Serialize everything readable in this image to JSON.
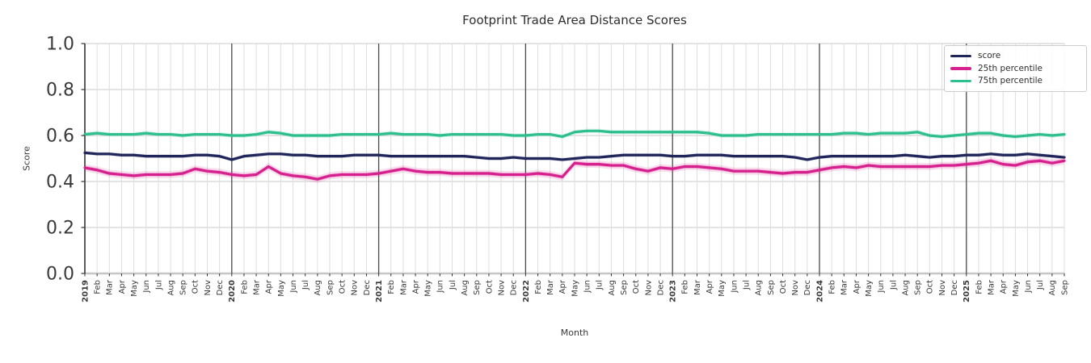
{
  "chart_data": {
    "type": "line",
    "title": "Footprint Trade Area Distance Scores",
    "xlabel": "Month",
    "ylabel": "Score",
    "ylim": [
      0.0,
      1.0
    ],
    "y_ticks": [
      0.0,
      0.2,
      0.4,
      0.6,
      0.8,
      1.0
    ],
    "grid": "on",
    "legend_position": "upper right",
    "x": [
      "2019",
      "Feb",
      "Mar",
      "Apr",
      "May",
      "Jun",
      "Jul",
      "Aug",
      "Sep",
      "Oct",
      "Nov",
      "Dec",
      "2020",
      "Feb",
      "Mar",
      "Apr",
      "May",
      "Jun",
      "Jul",
      "Aug",
      "Sep",
      "Oct",
      "Nov",
      "Dec",
      "2021",
      "Feb",
      "Mar",
      "Apr",
      "May",
      "Jun",
      "Jul",
      "Aug",
      "Sep",
      "Oct",
      "Nov",
      "Dec",
      "2022",
      "Feb",
      "Mar",
      "Apr",
      "May",
      "Jun",
      "Jul",
      "Aug",
      "Sep",
      "Oct",
      "Nov",
      "Dec",
      "2023",
      "Feb",
      "Mar",
      "Apr",
      "May",
      "Jun",
      "Jul",
      "Aug",
      "Sep",
      "Oct",
      "Nov",
      "Dec",
      "2024",
      "Feb",
      "Mar",
      "Apr",
      "May",
      "Jun",
      "Jul",
      "Aug",
      "Sep",
      "Oct",
      "Nov",
      "Dec",
      "2025",
      "Feb",
      "Mar",
      "Apr",
      "May",
      "Jun",
      "Jul",
      "Aug",
      "Sep"
    ],
    "series": [
      {
        "name": "score",
        "color": "#20265a",
        "band_halfwidth": 0.008,
        "values": [
          0.525,
          0.52,
          0.52,
          0.515,
          0.515,
          0.51,
          0.51,
          0.51,
          0.51,
          0.515,
          0.515,
          0.51,
          0.495,
          0.51,
          0.515,
          0.52,
          0.52,
          0.515,
          0.515,
          0.51,
          0.51,
          0.51,
          0.515,
          0.515,
          0.515,
          0.51,
          0.51,
          0.51,
          0.51,
          0.51,
          0.51,
          0.51,
          0.505,
          0.5,
          0.5,
          0.505,
          0.5,
          0.5,
          0.5,
          0.495,
          0.5,
          0.505,
          0.505,
          0.51,
          0.515,
          0.515,
          0.515,
          0.515,
          0.51,
          0.51,
          0.515,
          0.515,
          0.515,
          0.51,
          0.51,
          0.51,
          0.51,
          0.51,
          0.505,
          0.495,
          0.505,
          0.51,
          0.51,
          0.51,
          0.51,
          0.51,
          0.51,
          0.515,
          0.51,
          0.505,
          0.51,
          0.51,
          0.515,
          0.515,
          0.52,
          0.515,
          0.515,
          0.52,
          0.515,
          0.51,
          0.505
        ]
      },
      {
        "name": "25th percentile",
        "color": "#d6208e",
        "band_halfwidth": 0.016,
        "values": [
          0.46,
          0.45,
          0.435,
          0.43,
          0.425,
          0.43,
          0.43,
          0.43,
          0.435,
          0.455,
          0.445,
          0.44,
          0.43,
          0.425,
          0.43,
          0.465,
          0.435,
          0.425,
          0.42,
          0.41,
          0.425,
          0.43,
          0.43,
          0.43,
          0.435,
          0.445,
          0.455,
          0.445,
          0.44,
          0.44,
          0.435,
          0.435,
          0.435,
          0.435,
          0.43,
          0.43,
          0.43,
          0.435,
          0.43,
          0.42,
          0.48,
          0.475,
          0.475,
          0.47,
          0.47,
          0.455,
          0.445,
          0.46,
          0.455,
          0.465,
          0.465,
          0.46,
          0.455,
          0.445,
          0.445,
          0.445,
          0.44,
          0.435,
          0.44,
          0.44,
          0.45,
          0.46,
          0.465,
          0.46,
          0.47,
          0.465,
          0.465,
          0.465,
          0.465,
          0.465,
          0.47,
          0.47,
          0.475,
          0.48,
          0.49,
          0.475,
          0.47,
          0.485,
          0.49,
          0.48,
          0.49
        ]
      },
      {
        "name": "75th percentile",
        "color": "#2ebf8e",
        "band_halfwidth": 0.01,
        "values": [
          0.605,
          0.61,
          0.605,
          0.605,
          0.605,
          0.61,
          0.605,
          0.605,
          0.6,
          0.605,
          0.605,
          0.605,
          0.6,
          0.6,
          0.605,
          0.615,
          0.61,
          0.6,
          0.6,
          0.6,
          0.6,
          0.605,
          0.605,
          0.605,
          0.605,
          0.61,
          0.605,
          0.605,
          0.605,
          0.6,
          0.605,
          0.605,
          0.605,
          0.605,
          0.605,
          0.6,
          0.6,
          0.605,
          0.605,
          0.595,
          0.615,
          0.62,
          0.62,
          0.615,
          0.615,
          0.615,
          0.615,
          0.615,
          0.615,
          0.615,
          0.615,
          0.61,
          0.6,
          0.6,
          0.6,
          0.605,
          0.605,
          0.605,
          0.605,
          0.605,
          0.605,
          0.605,
          0.61,
          0.61,
          0.605,
          0.61,
          0.61,
          0.61,
          0.615,
          0.6,
          0.595,
          0.6,
          0.605,
          0.61,
          0.61,
          0.6,
          0.595,
          0.6,
          0.605,
          0.6,
          0.605
        ]
      }
    ],
    "colors": {
      "grid_minor": "#dedede",
      "grid_major": "#d4d4d4",
      "zero_line": "#c6c6c6",
      "year_line": "#4a4a4a",
      "spine": "#2f2f2f",
      "tick": "#333333",
      "tick_label": "#3a3a3a"
    }
  }
}
